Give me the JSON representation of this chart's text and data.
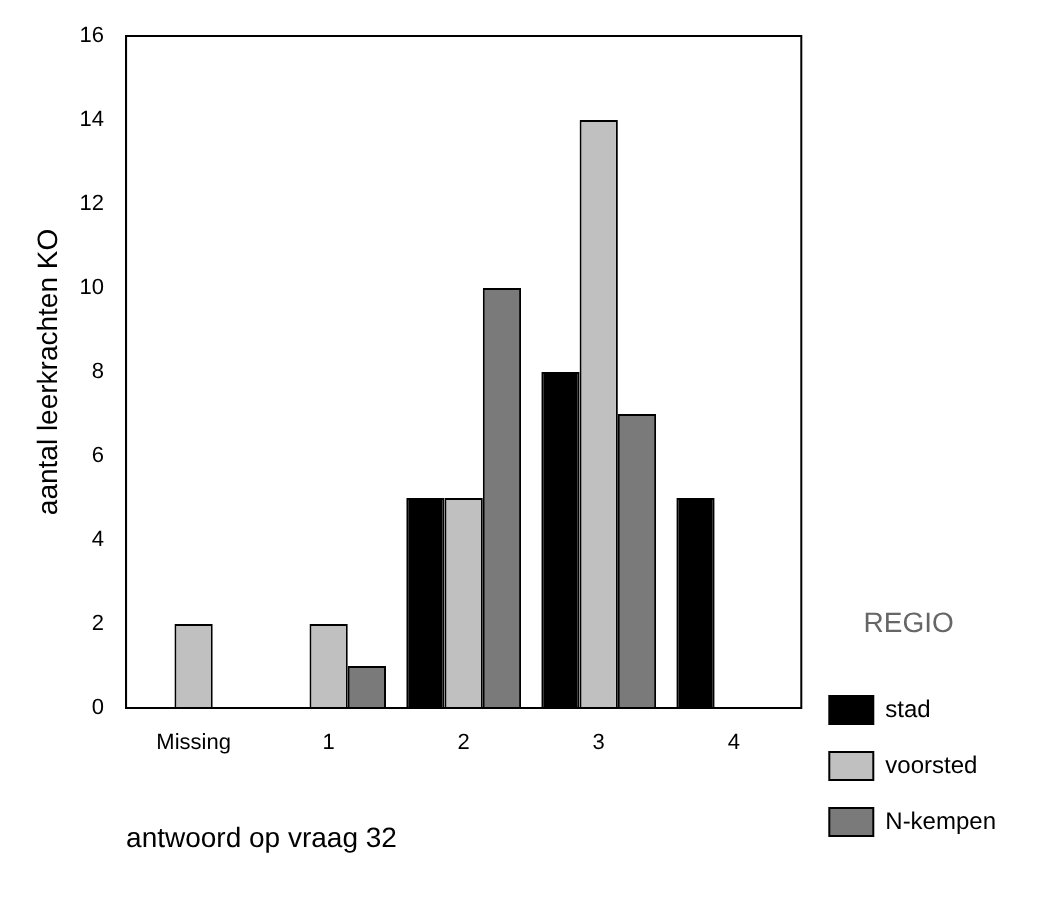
{
  "chart_data": {
    "type": "bar",
    "xlabel": "antwoord op vraag 32",
    "ylabel": "aantal leerkrachten KO",
    "legend_title": "REGIO",
    "categories": [
      "Missing",
      "1",
      "2",
      "3",
      "4"
    ],
    "series": [
      {
        "name": "stad",
        "color": "#000000",
        "values": [
          0,
          0,
          5,
          8,
          5
        ]
      },
      {
        "name": "voorsted",
        "color": "#c0c0c0",
        "values": [
          2,
          2,
          5,
          14,
          0
        ]
      },
      {
        "name": "N-kempen",
        "color": "#7a7a7a",
        "values": [
          0,
          1,
          10,
          7,
          0
        ]
      }
    ],
    "ylim": [
      0,
      16
    ],
    "yticks": [
      0,
      2,
      4,
      6,
      8,
      10,
      12,
      14,
      16
    ],
    "grid": false,
    "legend": "right"
  }
}
